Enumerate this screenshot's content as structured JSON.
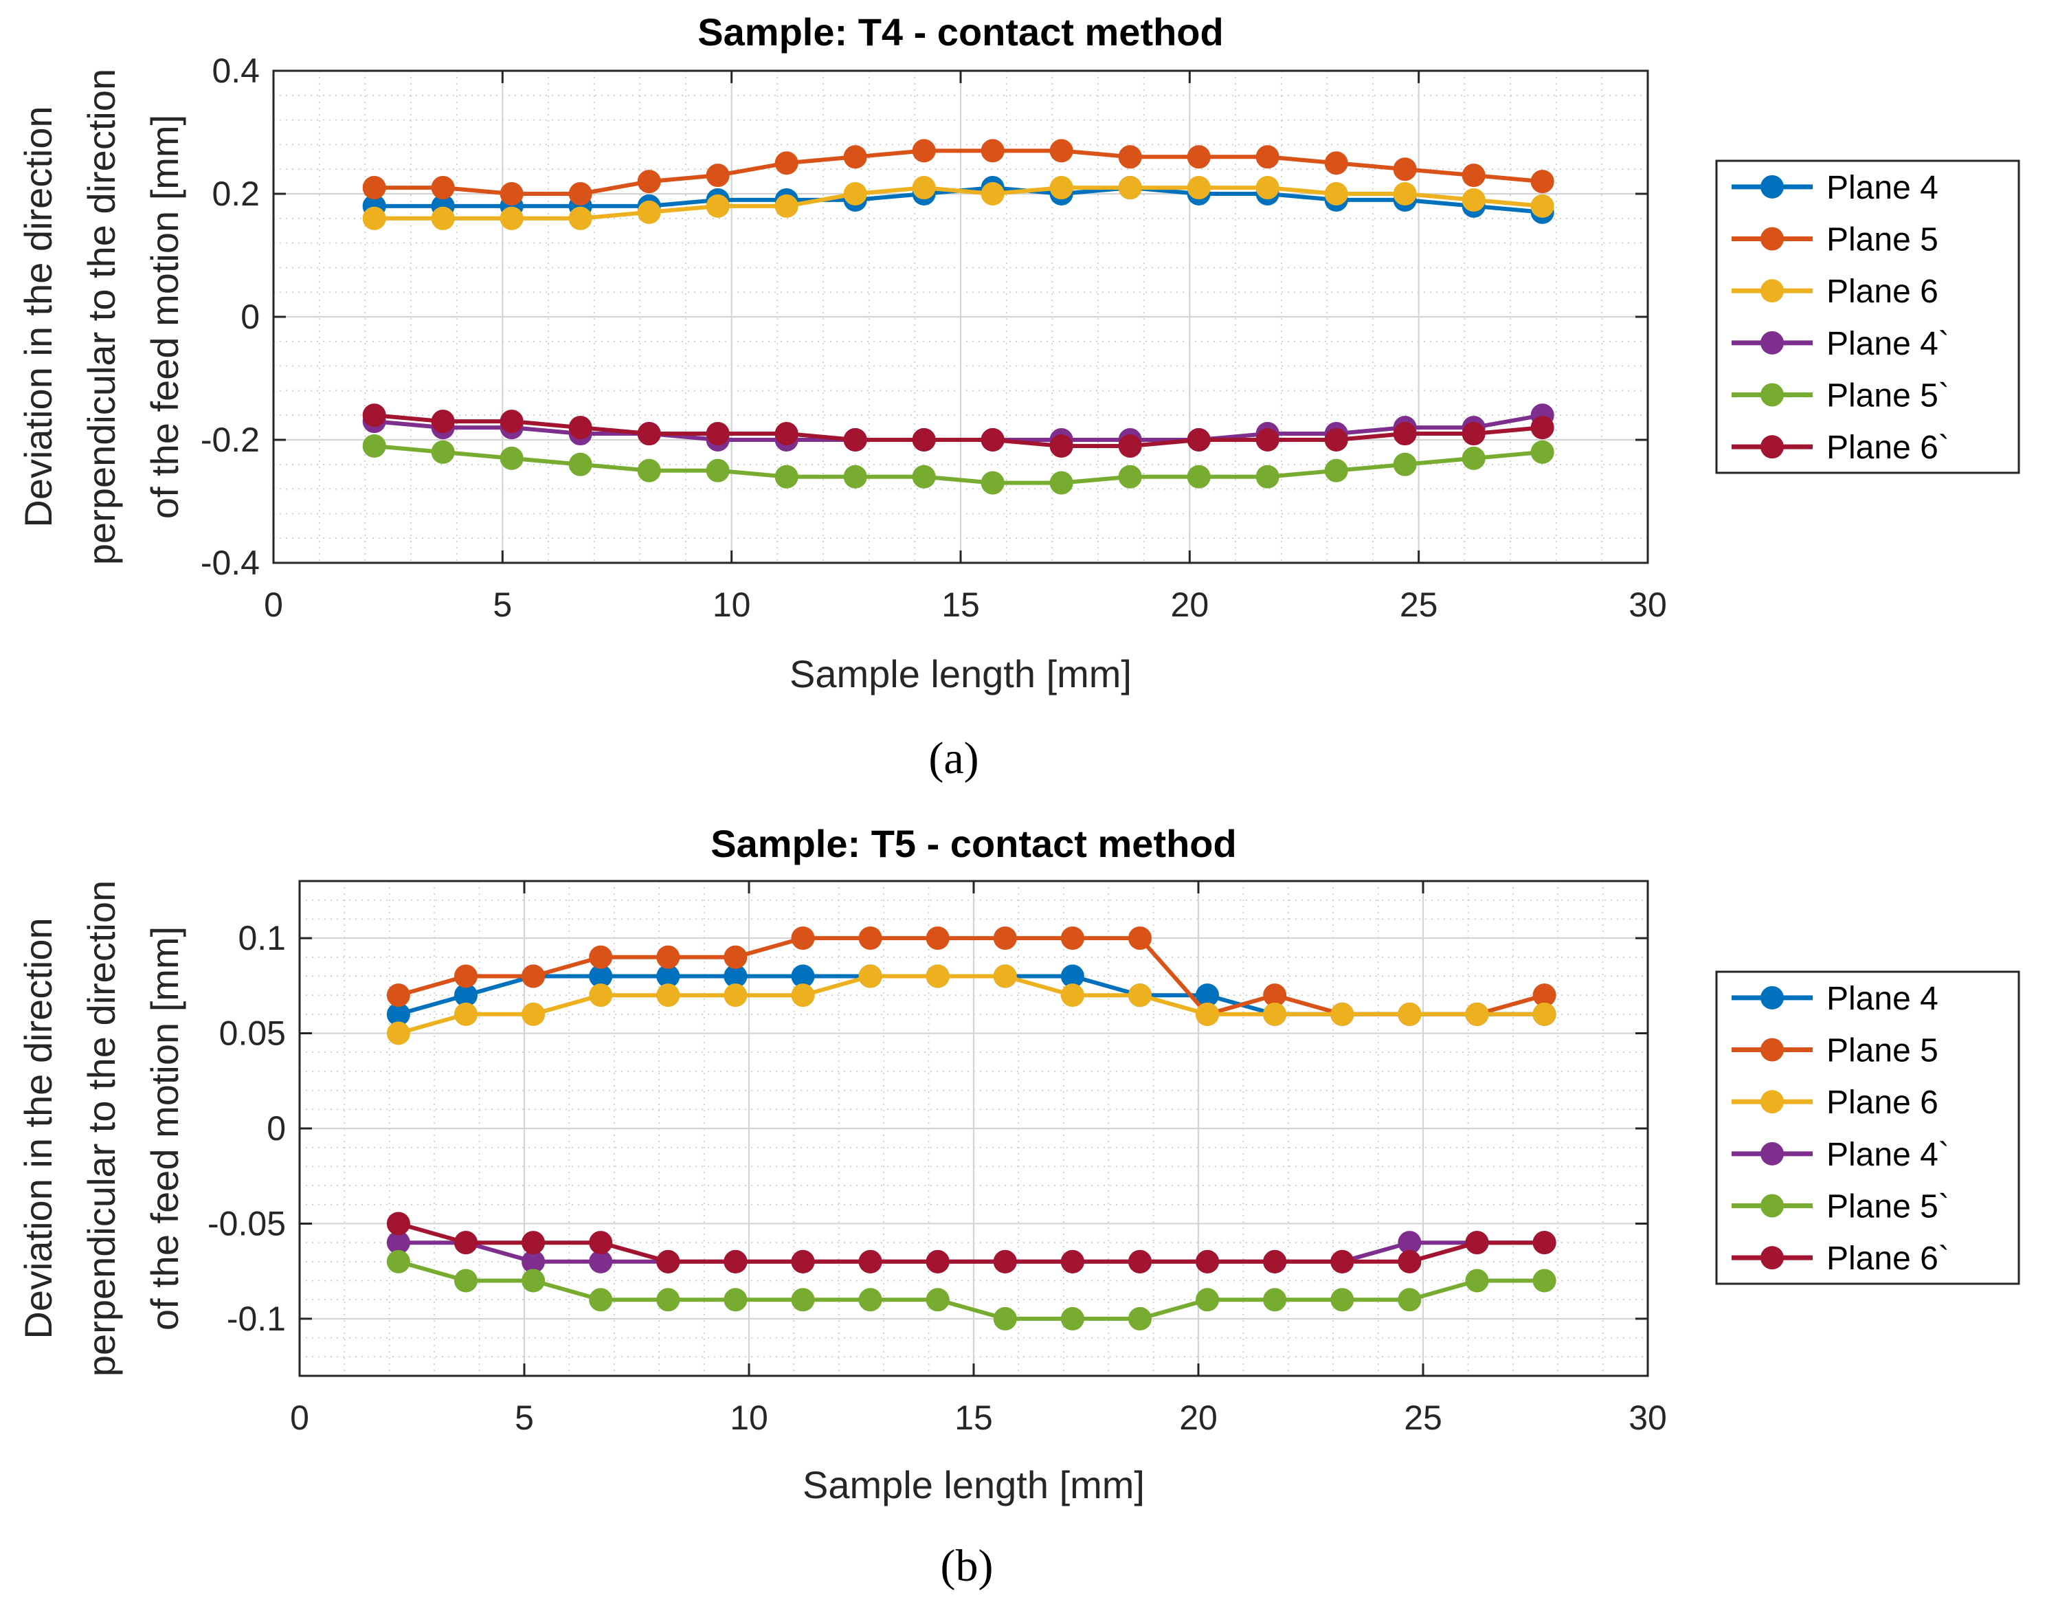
{
  "chart_data": [
    {
      "type": "line",
      "panel_label": "(a)",
      "panel_letter": "a",
      "title": "Sample: T4 - contact method",
      "xlabel": "Sample length [mm]",
      "ylabel_lines": [
        "Deviation in the direction",
        "perpendicular to the direction",
        "of the feed motion [mm]"
      ],
      "xlim": [
        0,
        30
      ],
      "ylim": [
        -0.4,
        0.4
      ],
      "xticks": [
        0,
        5,
        10,
        15,
        20,
        25,
        30
      ],
      "xtick_labels": [
        "0",
        "5",
        "10",
        "15",
        "20",
        "25",
        "30"
      ],
      "yticks": [
        -0.4,
        -0.2,
        0,
        0.2,
        0.4
      ],
      "ytick_labels": [
        "-0.4",
        "-0.2",
        "0",
        "0.2",
        "0.4"
      ],
      "grid": true,
      "minor_grid": true,
      "legend_position": "right",
      "x": [
        2.2,
        3.7,
        5.2,
        6.7,
        8.2,
        9.7,
        11.2,
        12.7,
        14.2,
        15.7,
        17.2,
        18.7,
        20.2,
        21.7,
        23.2,
        24.7,
        26.2,
        27.7
      ],
      "series": [
        {
          "name": "Plane 4",
          "color": "#0072BD",
          "values": [
            0.18,
            0.18,
            0.18,
            0.18,
            0.18,
            0.19,
            0.19,
            0.19,
            0.2,
            0.21,
            0.2,
            0.21,
            0.2,
            0.2,
            0.19,
            0.19,
            0.18,
            0.17
          ]
        },
        {
          "name": "Plane 5",
          "color": "#D95319",
          "values": [
            0.21,
            0.21,
            0.2,
            0.2,
            0.22,
            0.23,
            0.25,
            0.26,
            0.27,
            0.27,
            0.27,
            0.26,
            0.26,
            0.26,
            0.25,
            0.24,
            0.23,
            0.22
          ]
        },
        {
          "name": "Plane 6",
          "color": "#EDB120",
          "values": [
            0.16,
            0.16,
            0.16,
            0.16,
            0.17,
            0.18,
            0.18,
            0.2,
            0.21,
            0.2,
            0.21,
            0.21,
            0.21,
            0.21,
            0.2,
            0.2,
            0.19,
            0.18
          ]
        },
        {
          "name": "Plane 4`",
          "color": "#7E2F8E",
          "values": [
            -0.17,
            -0.18,
            -0.18,
            -0.19,
            -0.19,
            -0.2,
            -0.2,
            -0.2,
            -0.2,
            -0.2,
            -0.2,
            -0.2,
            -0.2,
            -0.19,
            -0.19,
            -0.18,
            -0.18,
            -0.16
          ]
        },
        {
          "name": "Plane 5`",
          "color": "#77AC30",
          "values": [
            -0.21,
            -0.22,
            -0.23,
            -0.24,
            -0.25,
            -0.25,
            -0.26,
            -0.26,
            -0.26,
            -0.27,
            -0.27,
            -0.26,
            -0.26,
            -0.26,
            -0.25,
            -0.24,
            -0.23,
            -0.22
          ]
        },
        {
          "name": "Plane 6`",
          "color": "#A2142F",
          "values": [
            -0.16,
            -0.17,
            -0.17,
            -0.18,
            -0.19,
            -0.19,
            -0.19,
            -0.2,
            -0.2,
            -0.2,
            -0.21,
            -0.21,
            -0.2,
            -0.2,
            -0.2,
            -0.19,
            -0.19,
            -0.18
          ]
        }
      ]
    },
    {
      "type": "line",
      "panel_label": "(b)",
      "panel_letter": "b",
      "title": "Sample: T5 - contact method",
      "xlabel": "Sample length [mm]",
      "ylabel_lines": [
        "Deviation in the direction",
        "perpendicular to the direction",
        "of the feed motion [mm]"
      ],
      "xlim": [
        0,
        30
      ],
      "ylim": [
        -0.13,
        0.13
      ],
      "xticks": [
        0,
        5,
        10,
        15,
        20,
        25,
        30
      ],
      "xtick_labels": [
        "0",
        "5",
        "10",
        "15",
        "20",
        "25",
        "30"
      ],
      "yticks": [
        -0.1,
        -0.05,
        0,
        0.05,
        0.1
      ],
      "ytick_labels": [
        "-0.1",
        "-0.05",
        "0",
        "0.05",
        "0.1"
      ],
      "grid": true,
      "minor_grid": true,
      "legend_position": "right",
      "x": [
        2.2,
        3.7,
        5.2,
        6.7,
        8.2,
        9.7,
        11.2,
        12.7,
        14.2,
        15.7,
        17.2,
        18.7,
        20.2,
        21.7,
        23.2,
        24.7,
        26.2,
        27.7
      ],
      "series": [
        {
          "name": "Plane 4",
          "color": "#0072BD",
          "values": [
            0.06,
            0.07,
            0.08,
            0.08,
            0.08,
            0.08,
            0.08,
            0.08,
            0.08,
            0.08,
            0.08,
            0.07,
            0.07,
            0.06,
            0.06,
            0.06,
            0.06,
            0.06
          ]
        },
        {
          "name": "Plane 5",
          "color": "#D95319",
          "values": [
            0.07,
            0.08,
            0.08,
            0.09,
            0.09,
            0.09,
            0.1,
            0.1,
            0.1,
            0.1,
            0.1,
            0.1,
            0.06,
            0.07,
            0.06,
            0.06,
            0.06,
            0.07
          ]
        },
        {
          "name": "Plane 6",
          "color": "#EDB120",
          "values": [
            0.05,
            0.06,
            0.06,
            0.07,
            0.07,
            0.07,
            0.07,
            0.08,
            0.08,
            0.08,
            0.07,
            0.07,
            0.06,
            0.06,
            0.06,
            0.06,
            0.06,
            0.06
          ]
        },
        {
          "name": "Plane 4`",
          "color": "#7E2F8E",
          "values": [
            -0.06,
            -0.06,
            -0.07,
            -0.07,
            -0.07,
            -0.07,
            -0.07,
            -0.07,
            -0.07,
            -0.07,
            -0.07,
            -0.07,
            -0.07,
            -0.07,
            -0.07,
            -0.06,
            -0.06,
            -0.06
          ]
        },
        {
          "name": "Plane 5`",
          "color": "#77AC30",
          "values": [
            -0.07,
            -0.08,
            -0.08,
            -0.09,
            -0.09,
            -0.09,
            -0.09,
            -0.09,
            -0.09,
            -0.1,
            -0.1,
            -0.1,
            -0.09,
            -0.09,
            -0.09,
            -0.09,
            -0.08,
            -0.08
          ]
        },
        {
          "name": "Plane 6`",
          "color": "#A2142F",
          "values": [
            -0.05,
            -0.06,
            -0.06,
            -0.06,
            -0.07,
            -0.07,
            -0.07,
            -0.07,
            -0.07,
            -0.07,
            -0.07,
            -0.07,
            -0.07,
            -0.07,
            -0.07,
            -0.07,
            -0.06,
            -0.06
          ]
        }
      ]
    }
  ]
}
